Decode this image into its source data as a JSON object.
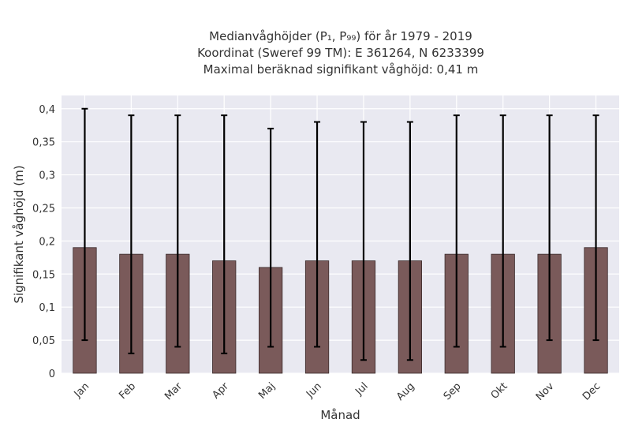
{
  "chart_data": {
    "type": "bar",
    "title_lines": [
      "Medianvåghöjder (P₁, P₉₉) för år 1979 - 2019",
      "Koordinat (Sweref 99 TM): E 361264, N 6233399",
      "Maximal beräknad signifikant våghöjd: 0,41 m"
    ],
    "xlabel": "Månad",
    "ylabel": "Signifikant våghöjd (m)",
    "categories": [
      "Jan",
      "Feb",
      "Mar",
      "Apr",
      "Maj",
      "Jun",
      "Jul",
      "Aug",
      "Sep",
      "Okt",
      "Nov",
      "Dec"
    ],
    "values": [
      0.19,
      0.18,
      0.18,
      0.17,
      0.16,
      0.17,
      0.17,
      0.17,
      0.18,
      0.18,
      0.18,
      0.19
    ],
    "error_low": [
      0.05,
      0.03,
      0.04,
      0.03,
      0.04,
      0.04,
      0.02,
      0.02,
      0.04,
      0.04,
      0.05,
      0.05
    ],
    "error_high": [
      0.4,
      0.39,
      0.39,
      0.39,
      0.37,
      0.38,
      0.38,
      0.38,
      0.39,
      0.39,
      0.39,
      0.39
    ],
    "ylim": [
      0,
      0.42
    ],
    "yticks": [
      0,
      0.05,
      0.1,
      0.15,
      0.2,
      0.25,
      0.3,
      0.35,
      0.4
    ],
    "ytick_labels": [
      "0",
      "0,05",
      "0,1",
      "0,15",
      "0,2",
      "0,25",
      "0,3",
      "0,35",
      "0,4"
    ],
    "grid": true,
    "colors": {
      "bar": "#7a5a5a",
      "bar_edge": "#3a2a2a",
      "error_bar": "#000000",
      "plot_background": "#e9e9f1",
      "grid": "#ffffff"
    }
  }
}
